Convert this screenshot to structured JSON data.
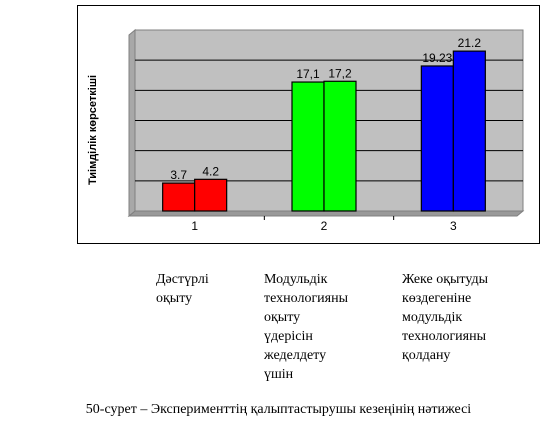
{
  "chart_data": {
    "type": "bar",
    "title": "",
    "xlabel": "",
    "ylabel": "Тиімділік көрсеткіші",
    "categories": [
      "1",
      "2",
      "3"
    ],
    "series": [
      {
        "values": [
          3.7,
          17.1,
          19.23
        ],
        "labels": [
          "3.7",
          "17,1",
          "19.23"
        ],
        "color": "#ff0000"
      },
      {
        "values": [
          4.2,
          17.2,
          21.2
        ],
        "labels": [
          "4.2",
          "17,2",
          "21.2"
        ],
        "color": "#ff0000"
      }
    ],
    "bar_colors_by_category": [
      "#ff0000",
      "#00ff00",
      "#0000ff"
    ],
    "ylim": [
      0,
      24
    ],
    "grid": true,
    "plot_background": "#c0c0c0"
  },
  "category_captions": [
    "Дәстүрлі\nоқыту",
    "Модульдік\nтехнологияны\nоқыту\nүдерісін\nжеделдету\nүшін",
    "Жеке оқытуды\nкөздегеніне\nмодульдік\nтехнологияны\nқолдану"
  ],
  "figure_caption": "50-сурет – Эксперименттің қалыптастырушы кезеңінің нәтижесі"
}
